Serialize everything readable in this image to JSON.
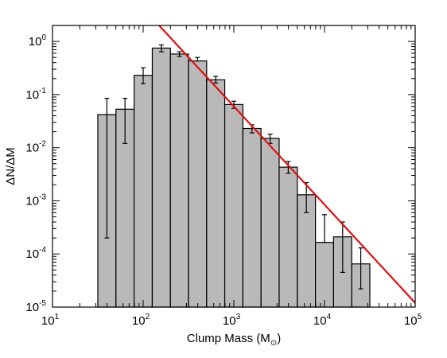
{
  "chart_data": {
    "type": "bar",
    "subtype": "log-log histogram with error bars and power-law fit line",
    "xlabel": "Clump Mass (M",
    "xlabel_sub": "⊙",
    "xlabel_close": ")",
    "ylabel": "ΔN/ΔM",
    "x_scale": "log",
    "y_scale": "log",
    "xlim": [
      10,
      100000
    ],
    "ylim": [
      1e-05,
      2
    ],
    "x_ticks": [
      {
        "value": 10,
        "base": "10",
        "exp": "1"
      },
      {
        "value": 100,
        "base": "10",
        "exp": "2"
      },
      {
        "value": 1000,
        "base": "10",
        "exp": "3"
      },
      {
        "value": 10000,
        "base": "10",
        "exp": "4"
      },
      {
        "value": 100000,
        "base": "10",
        "exp": "5"
      }
    ],
    "y_ticks": [
      {
        "value": 1e-05,
        "base": "10",
        "exp": "-5"
      },
      {
        "value": 0.0001,
        "base": "10",
        "exp": "-4"
      },
      {
        "value": 0.001,
        "base": "10",
        "exp": "-3"
      },
      {
        "value": 0.01,
        "base": "10",
        "exp": "-2"
      },
      {
        "value": 0.1,
        "base": "10",
        "exp": "-1"
      },
      {
        "value": 1,
        "base": "10",
        "exp": "0"
      }
    ],
    "bins": [
      {
        "x0": 31.6,
        "x1": 50.1,
        "value": 0.042,
        "err_low": 0.0002,
        "err_high": 0.085
      },
      {
        "x0": 50.1,
        "x1": 79.4,
        "value": 0.053,
        "err_low": 0.012,
        "err_high": 0.085
      },
      {
        "x0": 79.4,
        "x1": 126,
        "value": 0.23,
        "err_low": 0.16,
        "err_high": 0.32
      },
      {
        "x0": 126,
        "x1": 200,
        "value": 0.75,
        "err_low": 0.64,
        "err_high": 0.86
      },
      {
        "x0": 200,
        "x1": 316,
        "value": 0.58,
        "err_low": 0.52,
        "err_high": 0.64
      },
      {
        "x0": 316,
        "x1": 501,
        "value": 0.43,
        "err_low": 0.43,
        "err_high": 0.5
      },
      {
        "x0": 501,
        "x1": 794,
        "value": 0.19,
        "err_low": 0.165,
        "err_high": 0.22
      },
      {
        "x0": 794,
        "x1": 1259,
        "value": 0.065,
        "err_low": 0.055,
        "err_high": 0.075
      },
      {
        "x0": 1259,
        "x1": 1995,
        "value": 0.023,
        "err_low": 0.019,
        "err_high": 0.027
      },
      {
        "x0": 1995,
        "x1": 3162,
        "value": 0.015,
        "err_low": 0.012,
        "err_high": 0.018
      },
      {
        "x0": 3162,
        "x1": 5012,
        "value": 0.0043,
        "err_low": 0.0033,
        "err_high": 0.0055
      },
      {
        "x0": 5012,
        "x1": 7943,
        "value": 0.0013,
        "err_low": 0.0006,
        "err_high": 0.0022
      },
      {
        "x0": 7943,
        "x1": 12589,
        "value": 0.000165,
        "err_low": 0.000165,
        "err_high": 0.00055
      },
      {
        "x0": 12589,
        "x1": 19953,
        "value": 0.00021,
        "err_low": 4.5e-05,
        "err_high": 0.0004
      },
      {
        "x0": 19953,
        "x1": 31623,
        "value": 6.5e-05,
        "err_low": 2.2e-05,
        "err_high": 0.00013
      }
    ],
    "fit_line": {
      "x": [
        150,
        100000
      ],
      "y": [
        2.0,
        1.2e-05
      ]
    },
    "colors": {
      "bar_fill": "#b9b9b9",
      "bar_edge": "#000000",
      "fit_line": "#dd1111",
      "error_bar": "#000000"
    },
    "grid": false,
    "legend": "none"
  }
}
